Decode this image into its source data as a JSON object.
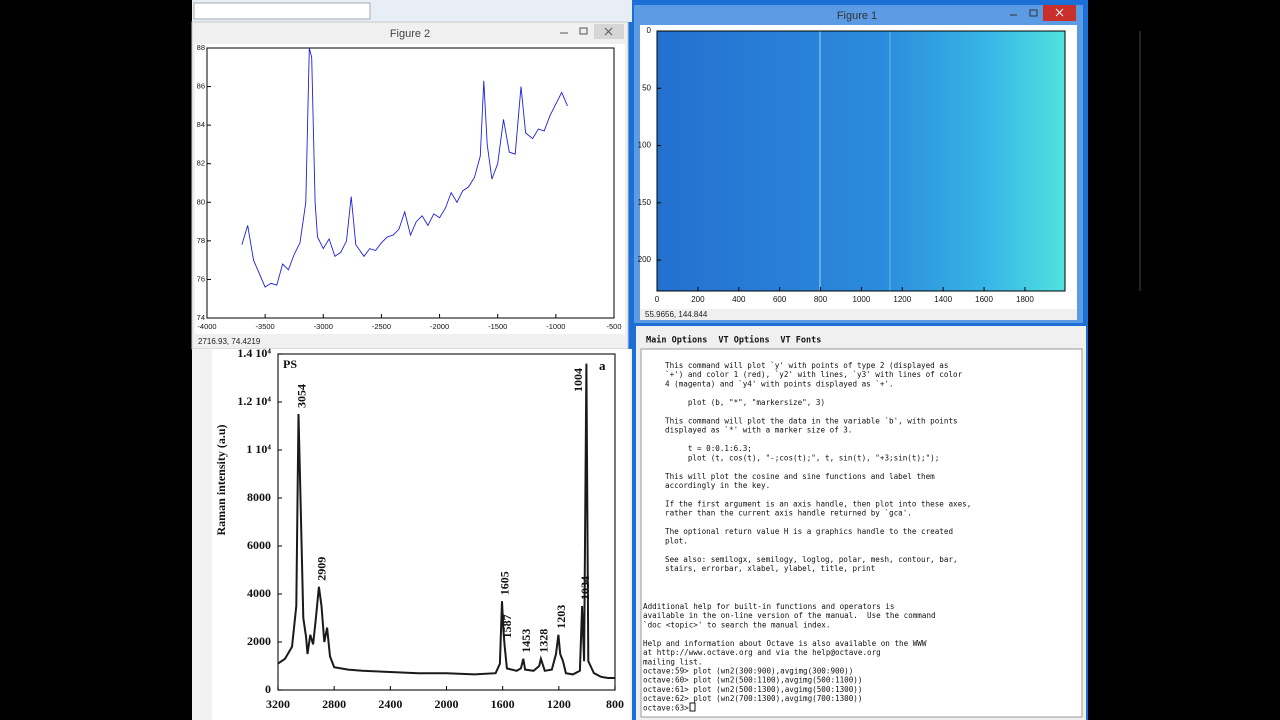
{
  "windows": {
    "figure2": {
      "title": "Figure 2",
      "status": "2716.93,  74.4219"
    },
    "figure1": {
      "title": "Figure 1",
      "status": "55.9656,  144.844"
    }
  },
  "chart_data": [
    {
      "type": "line",
      "color": "#1f1fe0",
      "x": [
        -3700,
        -3650,
        -3600,
        -3550,
        -3500,
        -3450,
        -3400,
        -3350,
        -3300,
        -3250,
        -3200,
        -3150,
        -3120,
        -3100,
        -3070,
        -3050,
        -3000,
        -2950,
        -2900,
        -2850,
        -2800,
        -2760,
        -2720,
        -2650,
        -2600,
        -2550,
        -2500,
        -2450,
        -2400,
        -2350,
        -2300,
        -2250,
        -2200,
        -2150,
        -2100,
        -2050,
        -2000,
        -1950,
        -1900,
        -1850,
        -1800,
        -1750,
        -1700,
        -1650,
        -1620,
        -1590,
        -1550,
        -1500,
        -1450,
        -1400,
        -1350,
        -1300,
        -1260,
        -1200,
        -1150,
        -1100,
        -1050,
        -1000,
        -950,
        -900
      ],
      "values": [
        77.8,
        78.8,
        77,
        76.3,
        75.6,
        75.8,
        75.7,
        76.8,
        76.5,
        77.3,
        77.9,
        80,
        88,
        87.5,
        80,
        78.2,
        77.6,
        78.1,
        77.2,
        77.4,
        78,
        80.3,
        77.8,
        77.2,
        77.6,
        77.5,
        77.9,
        78.2,
        78.3,
        78.6,
        79.5,
        78.3,
        79,
        79.3,
        78.8,
        79.4,
        79.2,
        79.7,
        80.5,
        80,
        80.6,
        80.8,
        81.3,
        82.4,
        86.3,
        83,
        81.2,
        82,
        84.3,
        82.6,
        82.5,
        86,
        83.6,
        83.3,
        83.8,
        83.7,
        84.5,
        85.1,
        85.7,
        85
      ],
      "xlim": [
        -4000,
        -500
      ],
      "ylim": [
        74,
        88
      ],
      "xticks": [
        -4000,
        -3500,
        -3000,
        -2500,
        -2000,
        -1500,
        -1000,
        -500
      ],
      "yticks": [
        74,
        76,
        78,
        80,
        82,
        84,
        86,
        88
      ]
    },
    {
      "type": "image",
      "xlim": [
        0,
        1996
      ],
      "ylim": [
        0,
        227
      ],
      "y_reversed": true,
      "xticks": [
        0,
        200,
        400,
        600,
        800,
        1000,
        1200,
        1400,
        1600,
        1800
      ],
      "yticks": [
        0,
        50,
        100,
        150,
        200
      ]
    },
    {
      "type": "line",
      "color": "#1a1a1a",
      "y_label": "Raman intensity (a.u)",
      "corner_labels": [
        "PS",
        "a"
      ],
      "x": [
        3200,
        3150,
        3100,
        3070,
        3054,
        3040,
        3020,
        3000,
        2990,
        2970,
        2950,
        2930,
        2909,
        2890,
        2870,
        2850,
        2830,
        2800,
        2700,
        2600,
        2400,
        2200,
        2000,
        1800,
        1650,
        1620,
        1605,
        1595,
        1587,
        1570,
        1500,
        1470,
        1453,
        1440,
        1380,
        1340,
        1328,
        1300,
        1250,
        1220,
        1203,
        1190,
        1170,
        1150,
        1100,
        1050,
        1034,
        1020,
        1004,
        990,
        950,
        900,
        850,
        800
      ],
      "values": [
        1100,
        1300,
        1800,
        3500,
        11500,
        8000,
        3000,
        2200,
        1500,
        2300,
        1900,
        3000,
        4300,
        3500,
        2000,
        2600,
        1400,
        950,
        850,
        800,
        750,
        700,
        700,
        650,
        700,
        1100,
        3700,
        2500,
        1900,
        900,
        800,
        900,
        1300,
        850,
        800,
        1000,
        1300,
        800,
        850,
        1500,
        2300,
        1500,
        1200,
        700,
        650,
        800,
        3500,
        1200,
        13600,
        1200,
        700,
        550,
        500,
        500
      ],
      "peak_labels": [
        3054,
        2909,
        1605,
        1587,
        1453,
        1328,
        1203,
        1034,
        1004
      ],
      "xlim": [
        3200,
        800
      ],
      "ylim": [
        0,
        14000
      ],
      "xticks": [
        3200,
        2800,
        2400,
        2000,
        1600,
        1200,
        800
      ],
      "yticks": [
        0,
        2000,
        4000,
        6000,
        8000,
        {
          "value": 10000,
          "label": "1 10⁴"
        },
        {
          "value": 12000,
          "label": "1.2 10⁴"
        },
        {
          "value": 14000,
          "label": "1.4 10⁴"
        }
      ]
    }
  ],
  "terminal": {
    "menu": [
      "Main Options",
      "VT Options",
      "VT Fonts"
    ],
    "help_paragraphs": [
      [
        "This command will plot `y' with points of type 2 (displayed as",
        "`+') and color 1 (red), `y2' with lines, `y3' with lines of color",
        "4 (magenta) and `y4' with points displayed as `+'."
      ],
      [
        "     plot (b, \"*\", \"markersize\", 3)"
      ],
      [
        "This command will plot the data in the variable `b', with points",
        "displayed as `*' with a marker size of 3."
      ],
      [
        "     t = 0:0.1:6.3;",
        "     plot (t, cos(t), \"-;cos(t);\", t, sin(t), \"+3;sin(t);\");"
      ],
      [
        "This will plot the cosine and sine functions and label them",
        "accordingly in the key."
      ],
      [
        "If the first argument is an axis handle, then plot into these axes,",
        "rather than the current axis handle returned by `gca'."
      ],
      [
        "The optional return value H is a graphics handle to the created",
        "plot."
      ],
      [
        "See also: semilogx, semilogy, loglog, polar, mesh, contour, bar,",
        "stairs, errorbar, xlabel, ylabel, title, print"
      ]
    ],
    "console_paragraphs": [
      [
        "Additional help for built-in functions and operators is",
        "available in the on-line version of the manual.  Use the command",
        "`doc <topic>' to search the manual index."
      ],
      [
        "Help and information about Octave is also available on the WWW",
        "at http://www.octave.org and via the help@octave.org",
        "mailing list.",
        "octave:59> plot (wn2(300:900),avgimg(300:900))",
        "octave:60> plot (wn2(500:1100),avgimg(500:1100))",
        "octave:61> plot (wn2(500:1300),avgimg(500:1300))",
        "octave:62> plot (wn2(700:1300),avgimg(700:1300))",
        "octave:63> "
      ]
    ]
  }
}
